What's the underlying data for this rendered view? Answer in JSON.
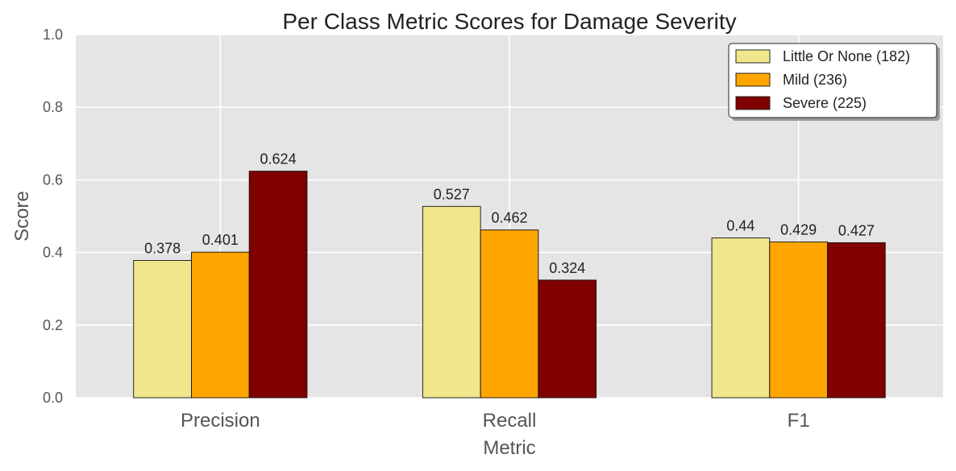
{
  "chart_data": {
    "type": "bar",
    "title": "Per Class Metric Scores for Damage Severity",
    "xlabel": "Metric",
    "ylabel": "Score",
    "categories": [
      "Precision",
      "Recall",
      "F1"
    ],
    "ylim": [
      0,
      1.0
    ],
    "yticks": [
      "0.0",
      "0.2",
      "0.4",
      "0.6",
      "0.8",
      "1.0"
    ],
    "grid": true,
    "legend_position": "top-right",
    "series": [
      {
        "name": "Little Or None (182)",
        "color": "#f0e68c",
        "values": [
          0.378,
          0.527,
          0.44
        ],
        "labels": [
          "0.378",
          "0.527",
          "0.44"
        ]
      },
      {
        "name": "Mild (236)",
        "color": "#ffa500",
        "values": [
          0.401,
          0.462,
          0.429
        ],
        "labels": [
          "0.401",
          "0.462",
          "0.429"
        ]
      },
      {
        "name": "Severe (225)",
        "color": "#800000",
        "values": [
          0.624,
          0.324,
          0.427
        ],
        "labels": [
          "0.624",
          "0.324",
          "0.427"
        ]
      }
    ]
  }
}
